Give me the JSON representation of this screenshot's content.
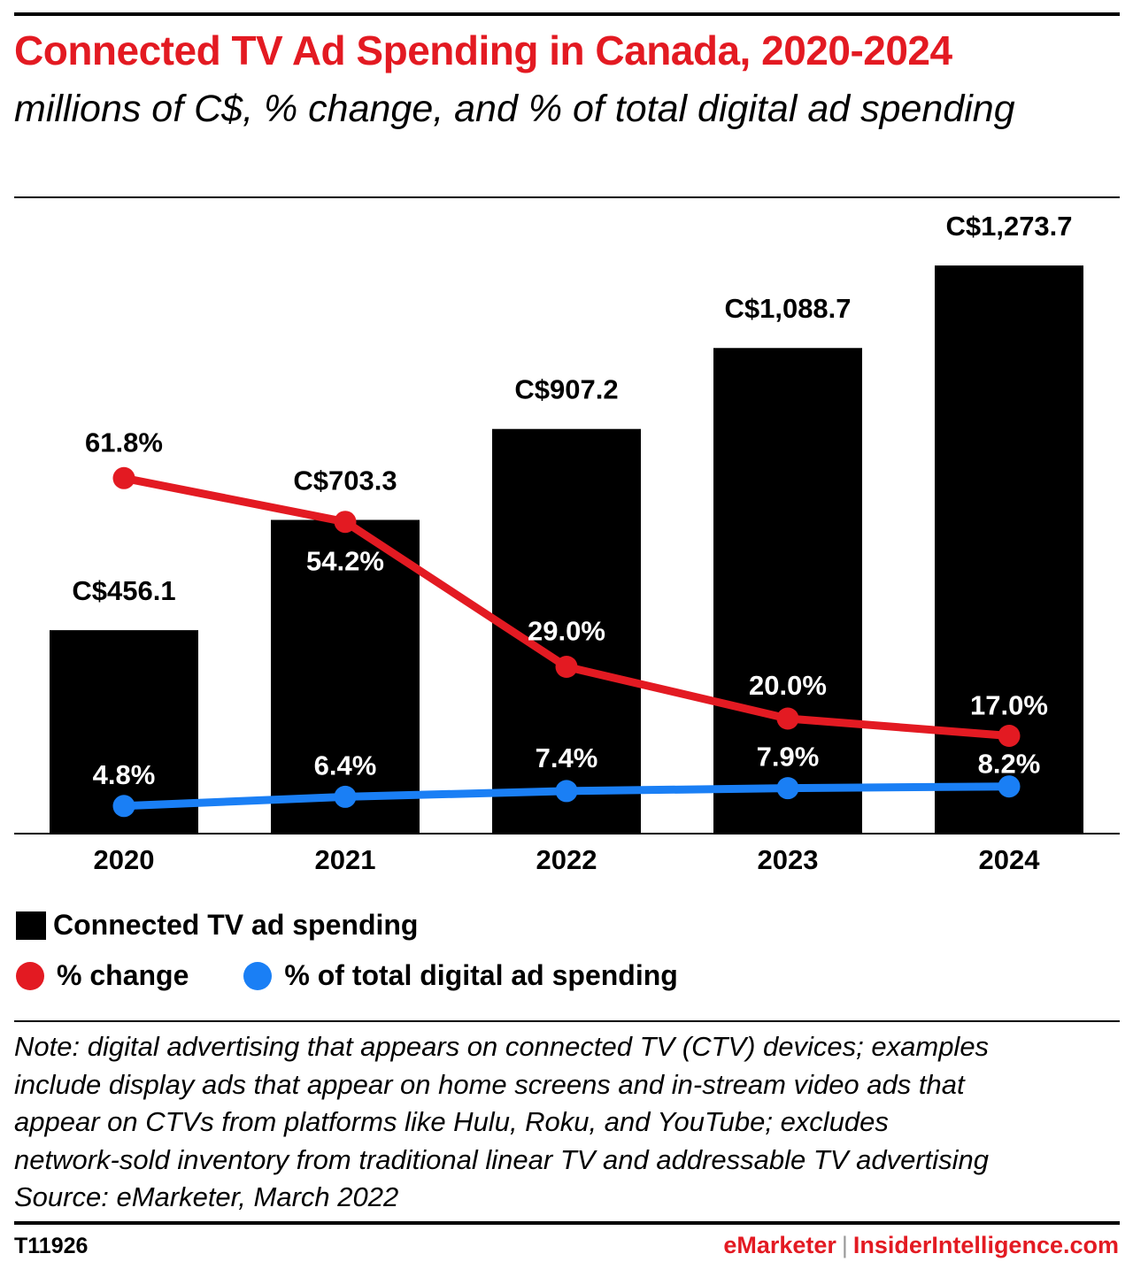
{
  "header": {
    "title": "Connected TV Ad Spending in Canada, 2020-2024",
    "subtitle": "millions of C$, % change, and % of total digital ad spending"
  },
  "chart_data": {
    "type": "bar",
    "categories": [
      "2020",
      "2021",
      "2022",
      "2023",
      "2024"
    ],
    "series": [
      {
        "name": "Connected TV ad spending",
        "kind": "bar",
        "color": "#000000",
        "values": [
          456.1,
          703.3,
          907.2,
          1088.7,
          1273.7
        ],
        "labels": [
          "C$456.1",
          "C$703.3",
          "C$907.2",
          "C$1,088.7",
          "C$1,273.7"
        ]
      },
      {
        "name": "% change",
        "kind": "line",
        "color": "#e31a22",
        "values": [
          61.8,
          54.2,
          29.0,
          20.0,
          17.0
        ],
        "labels": [
          "61.8%",
          "54.2%",
          "29.0%",
          "20.0%",
          "17.0%"
        ]
      },
      {
        "name": "% of total digital ad spending",
        "kind": "line",
        "color": "#1a7ff5",
        "values": [
          4.8,
          6.4,
          7.4,
          7.9,
          8.2
        ],
        "labels": [
          "4.8%",
          "6.4%",
          "7.4%",
          "7.9%",
          "8.2%"
        ]
      }
    ],
    "bar_ylim": [
      0,
      1400
    ],
    "line_ylim": [
      0,
      70
    ]
  },
  "legend": {
    "bar": "Connected TV ad spending",
    "red": "% change",
    "blue": "% of total digital ad spending",
    "colors": {
      "bar": "#000000",
      "red": "#e31a22",
      "blue": "#1a7ff5"
    }
  },
  "note": {
    "lines": [
      "Note: digital advertising that appears on connected TV (CTV) devices; examples",
      "include display ads that appear on home screens and in-stream video ads that",
      "appear on CTVs from platforms like Hulu, Roku, and YouTube; excludes",
      "network-sold inventory from traditional linear TV and addressable TV advertising",
      "Source: eMarketer, March 2022"
    ]
  },
  "footer": {
    "code": "T11926",
    "brand1": "eMarketer",
    "separator": "|",
    "brand2": "InsiderIntelligence.com"
  }
}
